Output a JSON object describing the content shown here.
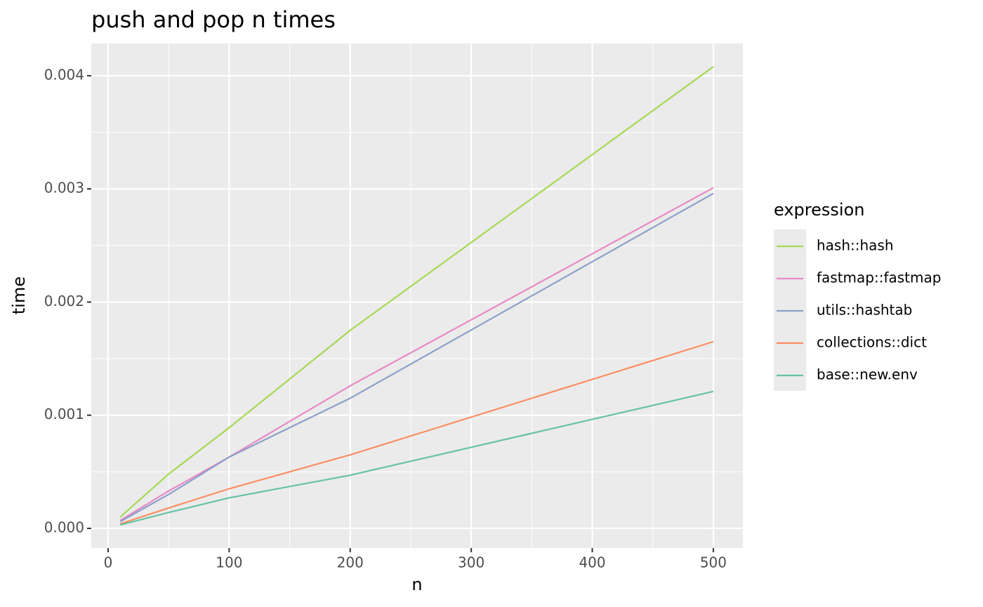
{
  "chart_data": {
    "type": "line",
    "title": "push and pop n times",
    "x_label": "n",
    "y_label": "time",
    "legend_title": "expression",
    "x": [
      10,
      50,
      100,
      200,
      500
    ],
    "series": [
      {
        "name": "hash::hash",
        "color": "#a6d854",
        "values": [
          0.0001,
          0.00048,
          0.00089,
          0.00175,
          0.00408
        ]
      },
      {
        "name": "fastmap::fastmap",
        "color": "#e78ac3",
        "values": [
          7e-05,
          0.00033,
          0.00063,
          0.00126,
          0.00301
        ]
      },
      {
        "name": "utils::hashtab",
        "color": "#8da0cb",
        "values": [
          6e-05,
          0.0003,
          0.00063,
          0.00115,
          0.00296
        ]
      },
      {
        "name": "collections::dict",
        "color": "#fc8d62",
        "values": [
          4e-05,
          0.00018,
          0.00035,
          0.00065,
          0.00165
        ]
      },
      {
        "name": "base::new.env",
        "color": "#66c2a5",
        "values": [
          3e-05,
          0.00014,
          0.00027,
          0.00047,
          0.00121
        ]
      }
    ],
    "xlim": [
      -13.9,
      524.4
    ],
    "ylim": [
      -0.000174,
      0.004285
    ],
    "xticks": [
      0,
      100,
      200,
      300,
      400,
      500
    ],
    "yticks": [
      {
        "value": 0,
        "label": "0.000"
      },
      {
        "value": 0.001,
        "label": "0.001"
      },
      {
        "value": 0.002,
        "label": "0.002"
      },
      {
        "value": 0.003,
        "label": "0.003"
      },
      {
        "value": 0.004,
        "label": "0.004"
      }
    ],
    "grid": true,
    "legend": "right"
  }
}
